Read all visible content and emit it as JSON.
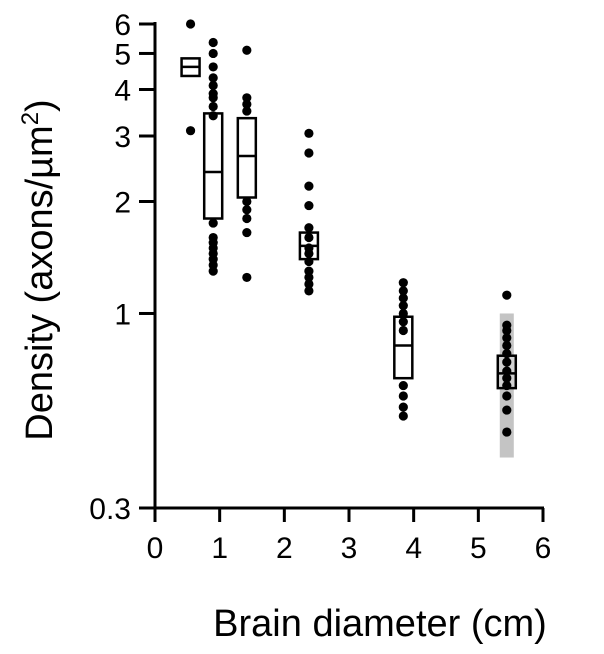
{
  "chart_data": {
    "type": "scatter",
    "title": "",
    "xlabel": "Brain diameter (cm)",
    "ylabel_main": "Density (axons/µm",
    "ylabel_sup": "2",
    "ylabel_close": ")",
    "x_scale": "linear",
    "y_scale": "log",
    "xlim": [
      0,
      6
    ],
    "ylim": [
      0.3,
      6
    ],
    "x_ticks": [
      0,
      1,
      2,
      3,
      4,
      5,
      6
    ],
    "x_tick_labels": [
      "0",
      "1",
      "2",
      "3",
      "4",
      "5",
      "6"
    ],
    "y_ticks": [
      0.3,
      1,
      2,
      3,
      4,
      5,
      6
    ],
    "y_tick_labels": [
      "0.3",
      "1",
      "2",
      "3",
      "4",
      "5",
      "6"
    ],
    "grid": false,
    "groups": [
      {
        "x": 0.55,
        "box": {
          "q1": 4.35,
          "median": 4.6,
          "q3": 4.85
        },
        "points": [
          6.0,
          3.1
        ],
        "fill": "#ffffff"
      },
      {
        "x": 0.9,
        "box": {
          "q1": 1.8,
          "median": 2.4,
          "q3": 3.45
        },
        "points": [
          5.35,
          5.0,
          4.6,
          4.3,
          4.1,
          3.9,
          3.8,
          3.6,
          3.4,
          1.75,
          1.6,
          1.55,
          1.5,
          1.45,
          1.4,
          1.35,
          1.3
        ],
        "fill": "#ffffff"
      },
      {
        "x": 1.42,
        "box": {
          "q1": 2.05,
          "median": 2.65,
          "q3": 3.35
        },
        "points": [
          5.1,
          3.8,
          3.65,
          3.5,
          2.0,
          1.9,
          1.8,
          1.65,
          1.25
        ],
        "fill": "#ffffff"
      },
      {
        "x": 2.38,
        "box": {
          "q1": 1.4,
          "median": 1.52,
          "q3": 1.65
        },
        "points": [
          3.05,
          2.7,
          2.2,
          1.95,
          1.7,
          1.6,
          1.5,
          1.45,
          1.38,
          1.3,
          1.25,
          1.2,
          1.15
        ],
        "fill": "#ffffff"
      },
      {
        "x": 3.84,
        "box": {
          "q1": 0.67,
          "median": 0.82,
          "q3": 0.98
        },
        "points": [
          1.21,
          1.15,
          1.1,
          1.05,
          1.0,
          0.95,
          0.9,
          0.64,
          0.6,
          0.56,
          0.53
        ],
        "fill": "#ffffff"
      },
      {
        "x": 5.44,
        "box": {
          "q1": 0.63,
          "median": 0.69,
          "q3": 0.77
        },
        "range_band": [
          0.41,
          1.0
        ],
        "points": [
          1.12,
          0.93,
          0.9,
          0.86,
          0.82,
          0.78,
          0.74,
          0.7,
          0.67,
          0.64,
          0.6,
          0.55,
          0.48
        ],
        "fill": "#d3d3d3"
      }
    ],
    "colors": {
      "points": "#000000",
      "box_stroke": "#000000",
      "range_band": "#c4c4c4",
      "axis": "#000000"
    }
  }
}
